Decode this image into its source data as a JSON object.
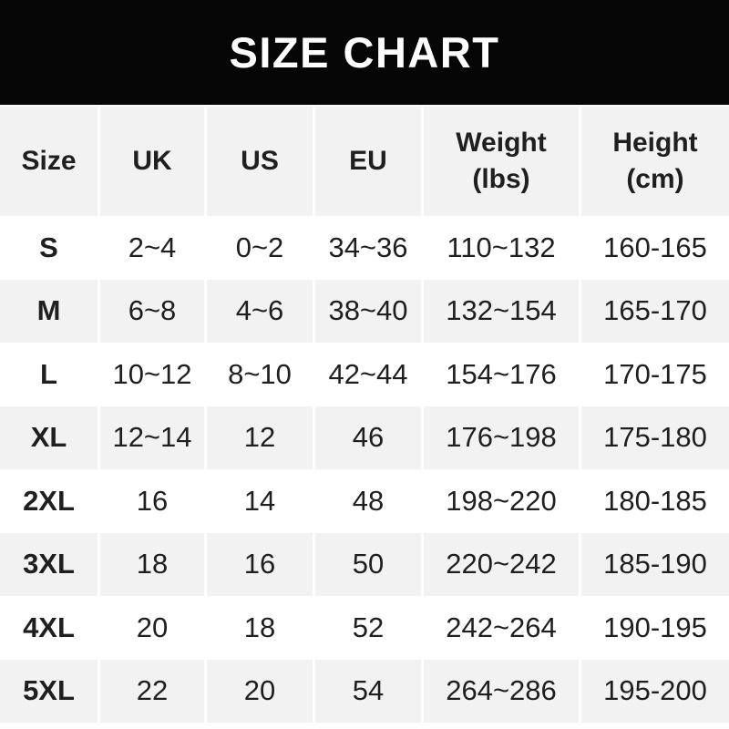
{
  "banner": {
    "title": "SIZE CHART"
  },
  "colors": {
    "banner_bg": "#060606",
    "banner_text": "#ffffff",
    "row_alt_bg": "#f2f2f2",
    "divider": "#ffffff",
    "text": "#1f1f1f"
  },
  "chart_data": {
    "type": "table",
    "title": "SIZE CHART",
    "columns": [
      "Size",
      "UK",
      "US",
      "EU",
      "Weight\n(lbs)",
      "Height\n(cm)"
    ],
    "rows": [
      [
        "S",
        "2~4",
        "0~2",
        "34~36",
        "110~132",
        "160-165"
      ],
      [
        "M",
        "6~8",
        "4~6",
        "38~40",
        "132~154",
        "165-170"
      ],
      [
        "L",
        "10~12",
        "8~10",
        "42~44",
        "154~176",
        "170-175"
      ],
      [
        "XL",
        "12~14",
        "12",
        "46",
        "176~198",
        "175-180"
      ],
      [
        "2XL",
        "16",
        "14",
        "48",
        "198~220",
        "180-185"
      ],
      [
        "3XL",
        "18",
        "16",
        "50",
        "220~242",
        "185-190"
      ],
      [
        "4XL",
        "20",
        "18",
        "52",
        "242~264",
        "190-195"
      ],
      [
        "5XL",
        "22",
        "20",
        "54",
        "264~286",
        "195-200"
      ]
    ],
    "layout": {
      "striped": true,
      "stripe_pattern": "white-gray-alternating",
      "header_bg": "#f2f2f2"
    }
  }
}
